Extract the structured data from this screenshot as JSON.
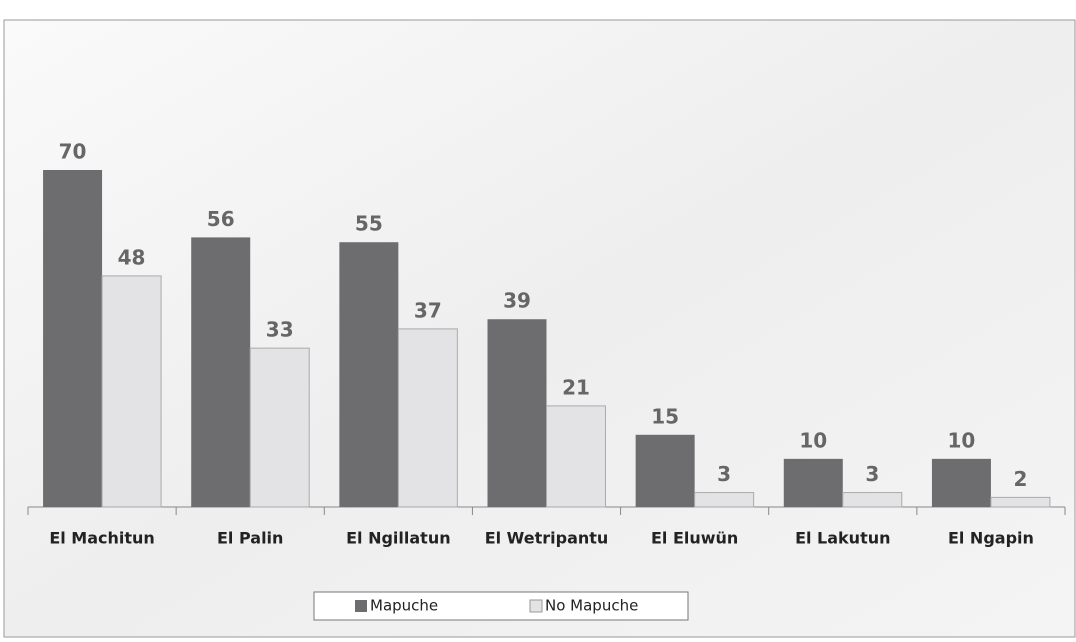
{
  "chart_data": {
    "type": "bar",
    "categories": [
      "El Machitun",
      "El Palin",
      "El Ngillatun",
      "El Wetripantu",
      "El Eluwün",
      "El Lakutun",
      "El Ngapin"
    ],
    "series": [
      {
        "name": "Mapuche",
        "color": "#6d6d70",
        "values": [
          70,
          56,
          55,
          39,
          15,
          10,
          10
        ]
      },
      {
        "name": "No Mapuche",
        "color": "#e3e3e5",
        "values": [
          48,
          33,
          37,
          21,
          3,
          3,
          2
        ]
      }
    ],
    "legend": "bottom"
  }
}
